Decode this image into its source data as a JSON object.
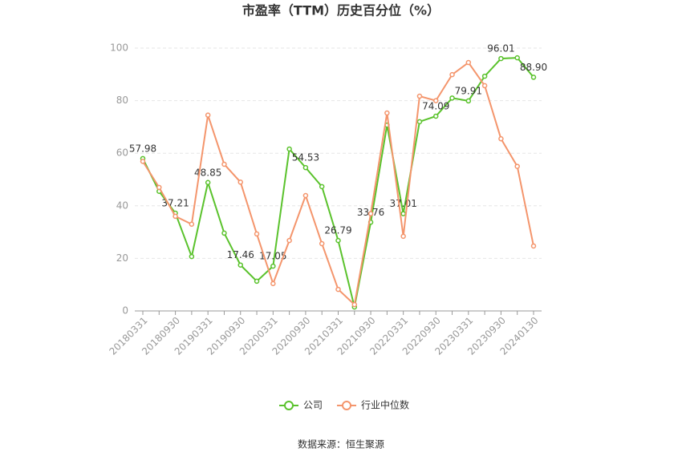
{
  "chart_data": {
    "type": "line",
    "title": "市盈率（TTM）历史百分位（%）",
    "source": "数据来源：恒生聚源",
    "categories": [
      "20180331",
      null,
      "20180930",
      null,
      "20190331",
      null,
      "20190930",
      null,
      "20200331",
      null,
      "20200930",
      null,
      "20210331",
      null,
      "20210930",
      null,
      "20220331",
      null,
      "20220930",
      null,
      "20230331",
      null,
      "20230930",
      null,
      "20240130"
    ],
    "series": [
      {
        "name": "公司",
        "color": "#5ac22c",
        "values": [
          57.98,
          45.5,
          37.21,
          20.7,
          48.85,
          29.6,
          17.46,
          11.3,
          17.05,
          61.6,
          54.53,
          47.3,
          26.79,
          1.5,
          33.76,
          70.7,
          37.01,
          72.0,
          74.09,
          81.0,
          79.91,
          89.3,
          96.01,
          96.3,
          88.9
        ],
        "value_labels": [
          "57.98",
          null,
          "37.21",
          null,
          "48.85",
          null,
          "17.46",
          null,
          "17.05",
          null,
          "54.53",
          null,
          "26.79",
          null,
          "33.76",
          null,
          "37.01",
          null,
          "74.09",
          null,
          "79.91",
          null,
          "96.01",
          null,
          "88.90"
        ]
      },
      {
        "name": "行业中位数",
        "color": "#f4956c",
        "values": [
          56.9,
          47,
          36,
          33,
          74.5,
          55.8,
          49,
          29.3,
          10.4,
          26.8,
          43.9,
          25.6,
          8.2,
          2.4,
          37,
          75.3,
          28.4,
          81.7,
          80,
          89.9,
          94.5,
          85.7,
          65.5,
          55,
          24.7
        ]
      }
    ],
    "ylim": [
      0,
      100
    ],
    "yticks": [
      0,
      20,
      40,
      60,
      80,
      100
    ],
    "grid": true
  }
}
